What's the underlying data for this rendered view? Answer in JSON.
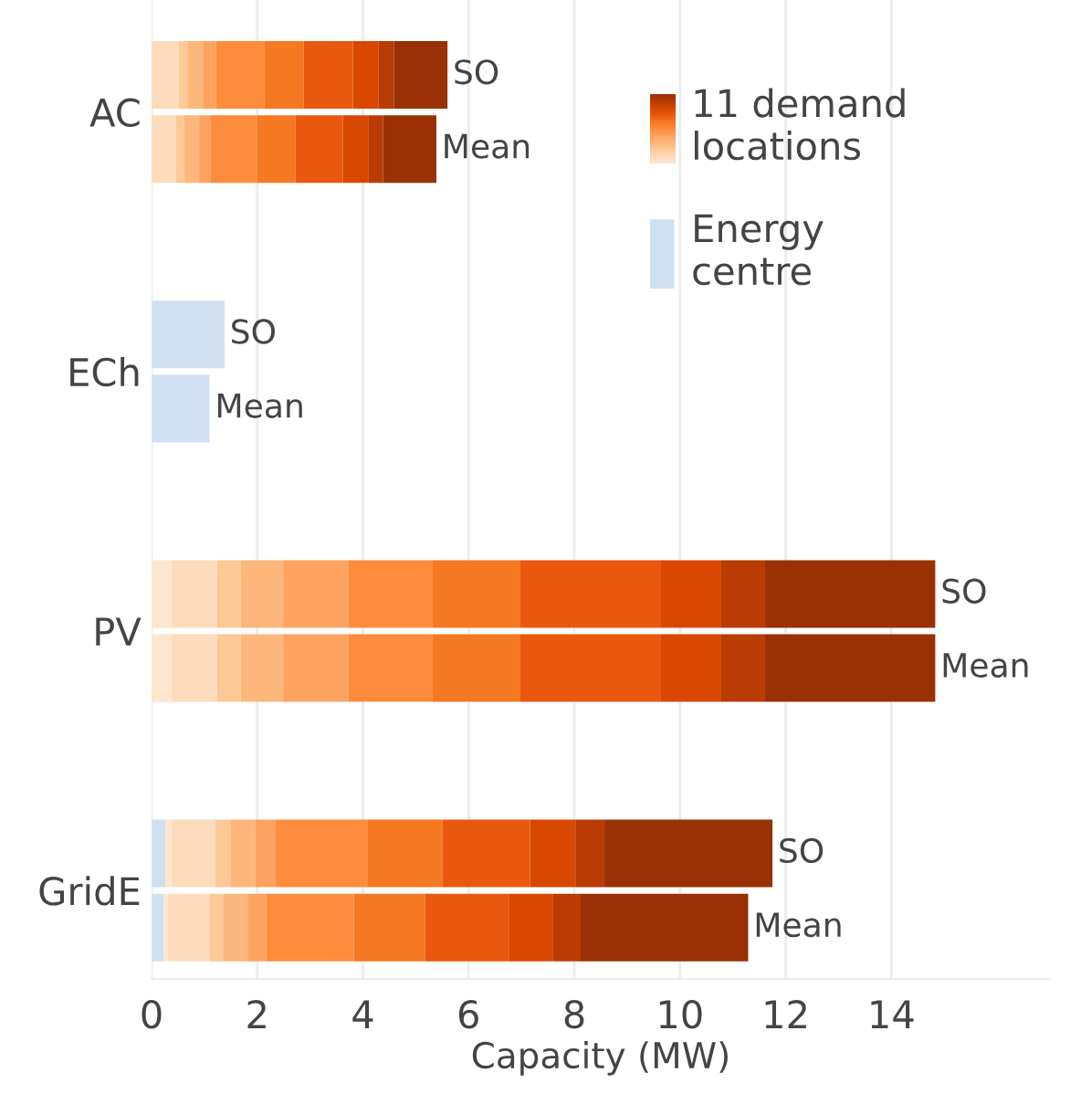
{
  "chart_data": {
    "type": "bar",
    "orientation": "horizontal",
    "stacked": true,
    "xlabel": "Capacity (MW)",
    "categories": [
      null,
      "AC",
      null,
      null,
      null,
      null,
      null,
      null,
      "ECh",
      null,
      null,
      null,
      null,
      null,
      null,
      "PV",
      null,
      null,
      null,
      null,
      null,
      null,
      "GridE",
      null
    ],
    "xlim": [
      0,
      17
    ],
    "xticks": [
      0,
      2,
      4,
      6,
      8,
      10,
      12,
      14
    ],
    "grid": "x",
    "legend": "top right",
    "series": [
      {
        "name": "Energy centre",
        "color": "#cfe0f1",
        "values": [
          null,
          null,
          null,
          null,
          null,
          null,
          null,
          1.38,
          null,
          1.1,
          null,
          null,
          null,
          null,
          null,
          null,
          null,
          null,
          null,
          null,
          null,
          0.26,
          null,
          0.23
        ],
        "value_labels": [
          null,
          null,
          null,
          null,
          null,
          null,
          null,
          "SO",
          null,
          "Mean",
          null,
          null,
          null,
          null,
          null,
          null,
          null,
          null,
          null,
          null,
          null,
          null,
          null,
          null
        ]
      },
      {
        "color": "#fee6ce",
        "values": [
          null,
          null,
          null,
          null,
          null,
          null,
          null,
          null,
          null,
          null,
          null,
          null,
          null,
          null,
          0.38,
          null,
          0.38,
          null,
          null,
          null,
          null,
          0.12,
          null,
          0.07
        ]
      },
      {
        "color": "#fddcbd",
        "values": [
          0.51,
          null,
          0.46,
          null,
          null,
          null,
          null,
          null,
          null,
          null,
          null,
          null,
          null,
          null,
          0.86,
          null,
          0.86,
          null,
          null,
          null,
          null,
          0.83,
          null,
          0.8
        ]
      },
      {
        "color": "#fdc997",
        "values": [
          0.18,
          null,
          0.16,
          null,
          null,
          null,
          null,
          null,
          null,
          null,
          null,
          null,
          null,
          null,
          0.45,
          null,
          0.45,
          null,
          null,
          null,
          null,
          0.28,
          null,
          0.25
        ]
      },
      {
        "color": "#fdb77a",
        "values": [
          0.28,
          null,
          0.28,
          null,
          null,
          null,
          null,
          null,
          null,
          null,
          null,
          null,
          null,
          null,
          0.8,
          null,
          0.8,
          null,
          null,
          null,
          null,
          0.48,
          null,
          0.48
        ]
      },
      {
        "color": "#fda35f",
        "values": [
          0.25,
          null,
          0.21,
          null,
          null,
          null,
          null,
          null,
          null,
          null,
          null,
          null,
          null,
          null,
          1.24,
          null,
          1.24,
          null,
          null,
          null,
          null,
          0.38,
          null,
          0.34
        ]
      },
      {
        "name": "11 demand locations",
        "color": "#fd8d3c",
        "values": [
          0.92,
          null,
          0.89,
          null,
          null,
          null,
          null,
          null,
          null,
          null,
          null,
          null,
          null,
          null,
          1.59,
          null,
          1.59,
          null,
          null,
          null,
          null,
          1.73,
          null,
          1.66
        ]
      },
      {
        "color": "#f57923",
        "values": [
          0.74,
          null,
          0.72,
          null,
          null,
          null,
          null,
          null,
          null,
          null,
          null,
          null,
          null,
          null,
          1.66,
          null,
          1.66,
          null,
          null,
          null,
          null,
          1.42,
          null,
          1.35
        ]
      },
      {
        "color": "#e8590f",
        "values": [
          0.93,
          null,
          0.9,
          null,
          null,
          null,
          null,
          null,
          null,
          null,
          null,
          null,
          null,
          null,
          2.66,
          null,
          2.66,
          null,
          null,
          null,
          null,
          1.66,
          null,
          1.59
        ]
      },
      {
        "color": "#d94801",
        "values": [
          0.48,
          null,
          0.49,
          null,
          null,
          null,
          null,
          null,
          null,
          null,
          null,
          null,
          null,
          null,
          1.14,
          null,
          1.14,
          null,
          null,
          null,
          null,
          0.86,
          null,
          0.83
        ]
      },
      {
        "color": "#b83c04",
        "values": [
          0.3,
          null,
          0.27,
          null,
          null,
          null,
          null,
          null,
          null,
          null,
          null,
          null,
          null,
          null,
          0.83,
          null,
          0.83,
          null,
          null,
          null,
          null,
          0.55,
          null,
          0.52
        ]
      },
      {
        "color": "#993104",
        "values": [
          1.01,
          null,
          1.01,
          null,
          null,
          null,
          null,
          null,
          null,
          null,
          null,
          null,
          null,
          null,
          3.22,
          null,
          3.22,
          null,
          null,
          null,
          null,
          3.18,
          null,
          3.17
        ],
        "value_labels": [
          "SO",
          null,
          "Mean",
          null,
          null,
          null,
          null,
          null,
          null,
          null,
          null,
          null,
          null,
          null,
          "SO",
          null,
          "Mean",
          null,
          null,
          null,
          null,
          "SO",
          null,
          "Mean"
        ]
      }
    ]
  }
}
